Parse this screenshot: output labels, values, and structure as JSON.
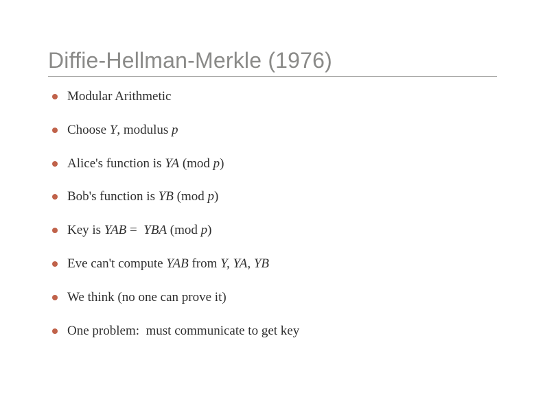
{
  "title": "Diffie-Hellman-Merkle (1976)",
  "colors": {
    "background": "#ffffff",
    "title_color": "#8a8a88",
    "rule_color": "#a9a9a7",
    "text_color": "#2f2f2f",
    "bullet_color": "#c0624a"
  },
  "typography": {
    "title_font": "Arial",
    "title_fontsize_pt": 24,
    "body_font": "Georgia",
    "body_fontsize_pt": 14
  },
  "bullets": [
    {
      "html": "Modular Arithmetic"
    },
    {
      "html": "Choose <span class=\"ital\">Y</span>, modulus <span class=\"ital\">p</span>"
    },
    {
      "html": "Alice's function is <span class=\"ital\">YA</span> (mod <span class=\"ital\">p</span>)"
    },
    {
      "html": "Bob's function is <span class=\"ital\">YB</span> (mod <span class=\"ital\">p</span>)"
    },
    {
      "html": "Key is <span class=\"ital\">YAB</span> =&nbsp; <span class=\"ital\">YBA</span> (mod <span class=\"ital\">p</span>)"
    },
    {
      "html": "Eve can't compute <span class=\"ital\">YAB</span> from <span class=\"ital\">Y, YA, YB</span>"
    },
    {
      "html": "We think (no one can prove it)"
    },
    {
      "html": "One problem:&nbsp; must communicate to get key"
    }
  ]
}
